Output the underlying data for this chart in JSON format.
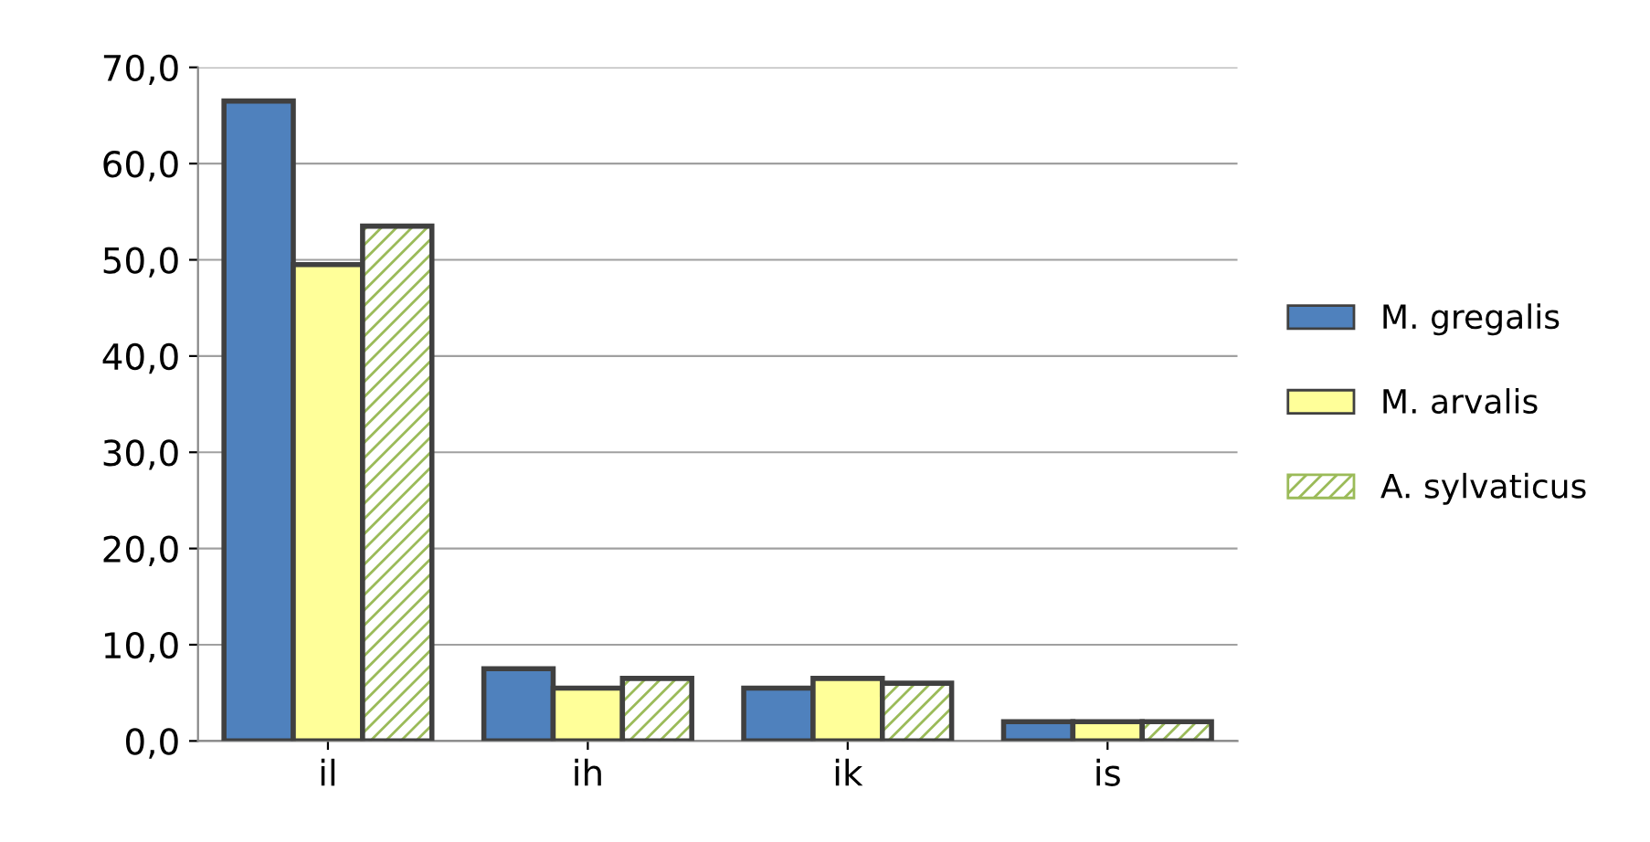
{
  "chart_data": {
    "type": "bar",
    "categories": [
      "il",
      "ih",
      "ik",
      "is"
    ],
    "series": [
      {
        "name": "M. gregalis",
        "color": "#4f81bd",
        "values": [
          66.5,
          7.5,
          5.5,
          2.0
        ]
      },
      {
        "name": "M. arvalis",
        "color": "#ffff99",
        "values": [
          49.5,
          5.5,
          6.5,
          2.0
        ]
      },
      {
        "name": "A. sylvaticus",
        "color": "#9bbb59",
        "values": [
          53.5,
          6.5,
          6.0,
          2.0
        ]
      }
    ],
    "ylim": [
      0,
      70
    ],
    "yticks": [
      {
        "value": 0,
        "label": "0,0"
      },
      {
        "value": 10,
        "label": "10,0"
      },
      {
        "value": 20,
        "label": "20,0"
      },
      {
        "value": 30,
        "label": "30,0"
      },
      {
        "value": 40,
        "label": "40,0"
      },
      {
        "value": 50,
        "label": "50,0"
      },
      {
        "value": 60,
        "label": "60,0"
      },
      {
        "value": 70,
        "label": "70,0"
      }
    ],
    "grid": "y",
    "legend": "right"
  }
}
